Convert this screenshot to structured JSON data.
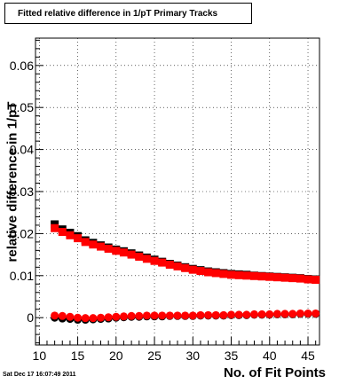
{
  "chart_data": {
    "type": "scatter",
    "title": "Fitted relative difference in 1/pT Primary Tracks",
    "xlabel": "No. of Fit Points",
    "ylabel": "relative difference in 1/pT",
    "xlim": [
      9.5,
      46.5
    ],
    "ylim": [
      -0.0065,
      0.0665
    ],
    "x_ticks": [
      10,
      15,
      20,
      25,
      30,
      35,
      40,
      45
    ],
    "y_ticks": [
      0,
      0.01,
      0.02,
      0.03,
      0.04,
      0.05,
      0.06
    ],
    "y_tick_labels": [
      "0",
      "0.01",
      "0.02",
      "0.03",
      "0.04",
      "0.05",
      "0.06"
    ],
    "grid": true,
    "series": [
      {
        "marker": "square",
        "color": "#000000",
        "x": [
          12,
          13,
          14,
          15,
          16,
          17,
          18,
          19,
          20,
          21,
          22,
          23,
          24,
          25,
          26,
          27,
          28,
          29,
          30,
          31,
          32,
          33,
          34,
          35,
          36,
          37,
          38,
          39,
          40,
          41,
          42,
          43,
          44,
          45,
          46
        ],
        "y": [
          0.0222,
          0.021,
          0.0202,
          0.0194,
          0.0184,
          0.0178,
          0.0172,
          0.0167,
          0.0162,
          0.0158,
          0.0153,
          0.0148,
          0.0143,
          0.0138,
          0.0133,
          0.0128,
          0.0124,
          0.012,
          0.0116,
          0.0113,
          0.011,
          0.0108,
          0.0106,
          0.0104,
          0.0103,
          0.0102,
          0.01,
          0.0099,
          0.0098,
          0.0097,
          0.0096,
          0.0095,
          0.0094,
          0.0092,
          0.0091
        ]
      },
      {
        "marker": "square",
        "color": "#ff0000",
        "x": [
          12,
          13,
          14,
          15,
          16,
          17,
          18,
          19,
          20,
          21,
          22,
          23,
          24,
          25,
          26,
          27,
          28,
          29,
          30,
          31,
          32,
          33,
          34,
          35,
          36,
          37,
          38,
          39,
          40,
          41,
          42,
          43,
          44,
          45,
          46
        ],
        "y": [
          0.0213,
          0.0204,
          0.0196,
          0.0189,
          0.018,
          0.0174,
          0.0169,
          0.0164,
          0.0159,
          0.0155,
          0.015,
          0.0145,
          0.014,
          0.0135,
          0.0131,
          0.0126,
          0.0122,
          0.0118,
          0.0114,
          0.0111,
          0.0108,
          0.0106,
          0.0104,
          0.0102,
          0.0101,
          0.01,
          0.0099,
          0.0098,
          0.0097,
          0.0096,
          0.0095,
          0.0094,
          0.0093,
          0.0091,
          0.009
        ]
      },
      {
        "marker": "circle",
        "color": "#000000",
        "x": [
          12,
          13,
          14,
          15,
          16,
          17,
          18,
          19,
          20,
          21,
          22,
          23,
          24,
          25,
          26,
          27,
          28,
          29,
          30,
          31,
          32,
          33,
          34,
          35,
          36,
          37,
          38,
          39,
          40,
          41,
          42,
          43,
          44,
          45,
          46
        ],
        "y": [
          0.0,
          -0.0002,
          -0.0003,
          -0.0005,
          -0.0005,
          -0.0004,
          -0.0003,
          -0.0002,
          0.0,
          0.0001,
          0.0002,
          0.0002,
          0.0003,
          0.0003,
          0.0003,
          0.0004,
          0.0004,
          0.0004,
          0.0004,
          0.0005,
          0.0005,
          0.0005,
          0.0005,
          0.0006,
          0.0006,
          0.0006,
          0.0007,
          0.0007,
          0.0007,
          0.0008,
          0.0008,
          0.0008,
          0.0009,
          0.0009,
          0.0009
        ]
      },
      {
        "marker": "circle",
        "color": "#ff0000",
        "x": [
          12,
          13,
          14,
          15,
          16,
          17,
          18,
          19,
          20,
          21,
          22,
          23,
          24,
          25,
          26,
          27,
          28,
          29,
          30,
          31,
          32,
          33,
          34,
          35,
          36,
          37,
          38,
          39,
          40,
          41,
          42,
          43,
          44,
          45,
          46
        ],
        "y": [
          0.0005,
          0.0004,
          0.0002,
          0.0,
          -0.0001,
          -0.0001,
          0.0,
          0.0001,
          0.0002,
          0.0003,
          0.0004,
          0.0004,
          0.0005,
          0.0005,
          0.0005,
          0.0005,
          0.0005,
          0.0005,
          0.0005,
          0.0006,
          0.0006,
          0.0006,
          0.0006,
          0.0007,
          0.0007,
          0.0007,
          0.0008,
          0.0008,
          0.0008,
          0.0009,
          0.0009,
          0.0009,
          0.001,
          0.001,
          0.001
        ]
      }
    ]
  },
  "footer": {
    "timestamp": "Sat Dec 17 16:07:49 2011"
  }
}
